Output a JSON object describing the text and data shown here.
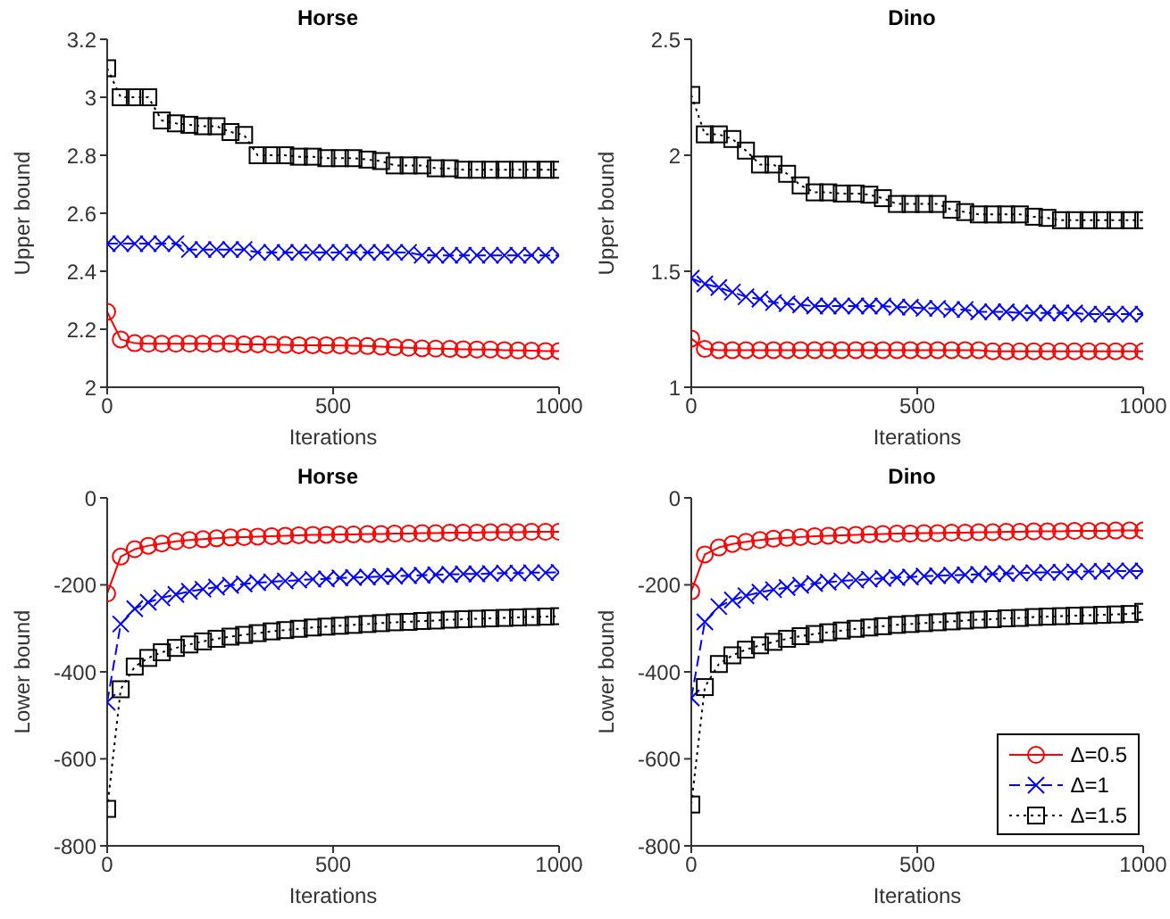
{
  "chart_data": [
    {
      "type": "line",
      "title": "Horse",
      "xlabel": "Iterations",
      "ylabel": "Upper bound",
      "xlim": [
        0,
        1000
      ],
      "xticks": [
        0,
        500,
        1000
      ],
      "ylim": [
        2,
        3.2
      ],
      "yticks": [
        2,
        2.2,
        2.4,
        2.6,
        2.8,
        3,
        3.2
      ],
      "grid": false,
      "legend": false,
      "x": [
        0,
        30,
        61,
        91,
        121,
        152,
        182,
        212,
        242,
        273,
        303,
        333,
        364,
        394,
        424,
        455,
        485,
        515,
        545,
        576,
        606,
        636,
        667,
        697,
        727,
        758,
        788,
        818,
        848,
        879,
        909,
        939,
        970,
        1000
      ],
      "series": [
        {
          "color": "#ff0000",
          "marker": "circle",
          "line_style": "solid",
          "values": [
            2.26,
            2.165,
            2.152,
            2.15,
            2.15,
            2.15,
            2.15,
            2.15,
            2.15,
            2.15,
            2.148,
            2.148,
            2.147,
            2.146,
            2.145,
            2.145,
            2.145,
            2.144,
            2.143,
            2.142,
            2.14,
            2.138,
            2.136,
            2.134,
            2.133,
            2.132,
            2.131,
            2.13,
            2.13,
            2.128,
            2.127,
            2.126,
            2.125,
            2.125
          ]
        },
        {
          "color": "#0000ff",
          "marker": "cross",
          "line_style": "dashed",
          "values": [
            2.495,
            2.495,
            2.495,
            2.495,
            2.495,
            2.495,
            2.475,
            2.475,
            2.475,
            2.475,
            2.475,
            2.465,
            2.465,
            2.465,
            2.465,
            2.465,
            2.465,
            2.465,
            2.465,
            2.465,
            2.465,
            2.465,
            2.465,
            2.455,
            2.455,
            2.455,
            2.455,
            2.455,
            2.455,
            2.455,
            2.455,
            2.455,
            2.455,
            2.455
          ]
        },
        {
          "color": "#000000",
          "marker": "square",
          "line_style": "dotted",
          "values": [
            3.1,
            3.0,
            3.0,
            3.0,
            2.92,
            2.91,
            2.905,
            2.9,
            2.9,
            2.88,
            2.87,
            2.8,
            2.8,
            2.8,
            2.795,
            2.795,
            2.79,
            2.79,
            2.79,
            2.785,
            2.78,
            2.765,
            2.765,
            2.765,
            2.755,
            2.755,
            2.75,
            2.75,
            2.75,
            2.75,
            2.75,
            2.75,
            2.75,
            2.75
          ]
        }
      ]
    },
    {
      "type": "line",
      "title": "Dino",
      "xlabel": "Iterations",
      "ylabel": "Upper bound",
      "xlim": [
        0,
        1000
      ],
      "xticks": [
        0,
        500,
        1000
      ],
      "ylim": [
        1,
        2.5
      ],
      "yticks": [
        1,
        1.5,
        2,
        2.5
      ],
      "grid": false,
      "legend": false,
      "x": [
        0,
        30,
        61,
        91,
        121,
        152,
        182,
        212,
        242,
        273,
        303,
        333,
        364,
        394,
        424,
        455,
        485,
        515,
        545,
        576,
        606,
        636,
        667,
        697,
        727,
        758,
        788,
        818,
        848,
        879,
        909,
        939,
        970,
        1000
      ],
      "series": [
        {
          "color": "#ff0000",
          "marker": "circle",
          "line_style": "solid",
          "values": [
            1.21,
            1.165,
            1.16,
            1.16,
            1.16,
            1.16,
            1.16,
            1.16,
            1.16,
            1.16,
            1.16,
            1.16,
            1.16,
            1.16,
            1.16,
            1.16,
            1.16,
            1.16,
            1.16,
            1.16,
            1.16,
            1.16,
            1.155,
            1.155,
            1.155,
            1.155,
            1.155,
            1.155,
            1.155,
            1.155,
            1.155,
            1.155,
            1.155,
            1.155
          ]
        },
        {
          "color": "#0000ff",
          "marker": "cross",
          "line_style": "dashed",
          "values": [
            1.47,
            1.445,
            1.43,
            1.41,
            1.39,
            1.38,
            1.365,
            1.36,
            1.355,
            1.35,
            1.35,
            1.35,
            1.35,
            1.35,
            1.35,
            1.345,
            1.345,
            1.34,
            1.34,
            1.335,
            1.335,
            1.325,
            1.325,
            1.325,
            1.32,
            1.32,
            1.32,
            1.32,
            1.32,
            1.315,
            1.315,
            1.315,
            1.315,
            1.315
          ]
        },
        {
          "color": "#000000",
          "marker": "square",
          "line_style": "dotted",
          "values": [
            2.26,
            2.09,
            2.09,
            2.07,
            2.02,
            1.96,
            1.96,
            1.92,
            1.87,
            1.84,
            1.84,
            1.835,
            1.835,
            1.83,
            1.815,
            1.79,
            1.79,
            1.79,
            1.79,
            1.765,
            1.755,
            1.745,
            1.745,
            1.745,
            1.745,
            1.735,
            1.73,
            1.72,
            1.72,
            1.72,
            1.72,
            1.72,
            1.72,
            1.72
          ]
        }
      ]
    },
    {
      "type": "line",
      "title": "Horse",
      "xlabel": "Iterations",
      "ylabel": "Lower bound",
      "xlim": [
        0,
        1000
      ],
      "xticks": [
        0,
        500,
        1000
      ],
      "ylim": [
        -800,
        0
      ],
      "yticks": [
        -800,
        -600,
        -400,
        -200,
        0
      ],
      "grid": false,
      "legend": false,
      "x": [
        0,
        30,
        61,
        91,
        121,
        152,
        182,
        212,
        242,
        273,
        303,
        333,
        364,
        394,
        424,
        455,
        485,
        515,
        545,
        576,
        606,
        636,
        667,
        697,
        727,
        758,
        788,
        818,
        848,
        879,
        909,
        939,
        970,
        1000
      ],
      "series": [
        {
          "color": "#ff0000",
          "marker": "circle",
          "line_style": "solid",
          "values": [
            -220,
            -135,
            -118,
            -110,
            -105,
            -100,
            -97,
            -95,
            -93,
            -91,
            -90,
            -89,
            -88,
            -87,
            -86,
            -85,
            -85,
            -84,
            -84,
            -83,
            -83,
            -82,
            -82,
            -81,
            -81,
            -80,
            -80,
            -80,
            -79,
            -79,
            -79,
            -78,
            -78,
            -78
          ]
        },
        {
          "color": "#0000ff",
          "marker": "cross",
          "line_style": "dashed",
          "values": [
            -470,
            -290,
            -255,
            -240,
            -230,
            -222,
            -215,
            -210,
            -205,
            -201,
            -198,
            -195,
            -193,
            -191,
            -189,
            -187,
            -186,
            -184,
            -183,
            -182,
            -181,
            -180,
            -179,
            -178,
            -177,
            -176,
            -175,
            -175,
            -174,
            -173,
            -173,
            -172,
            -172,
            -171
          ]
        },
        {
          "color": "#000000",
          "marker": "square",
          "line_style": "dotted",
          "values": [
            -715,
            -440,
            -388,
            -368,
            -355,
            -345,
            -337,
            -330,
            -324,
            -319,
            -315,
            -311,
            -307,
            -304,
            -301,
            -298,
            -296,
            -294,
            -292,
            -290,
            -288,
            -286,
            -285,
            -283,
            -282,
            -280,
            -279,
            -278,
            -277,
            -276,
            -275,
            -274,
            -273,
            -272
          ]
        }
      ]
    },
    {
      "type": "line",
      "title": "Dino",
      "xlabel": "Iterations",
      "ylabel": "Lower bound",
      "xlim": [
        0,
        1000
      ],
      "xticks": [
        0,
        500,
        1000
      ],
      "ylim": [
        -800,
        0
      ],
      "yticks": [
        -800,
        -600,
        -400,
        -200,
        0
      ],
      "grid": false,
      "legend": "bottom right",
      "x": [
        0,
        30,
        61,
        91,
        121,
        152,
        182,
        212,
        242,
        273,
        303,
        333,
        364,
        394,
        424,
        455,
        485,
        515,
        545,
        576,
        606,
        636,
        667,
        697,
        727,
        758,
        788,
        818,
        848,
        879,
        909,
        939,
        970,
        1000
      ],
      "series": [
        {
          "name": "Δ=0.5",
          "color": "#ff0000",
          "marker": "circle",
          "line_style": "solid",
          "values": [
            -215,
            -130,
            -114,
            -106,
            -101,
            -97,
            -94,
            -92,
            -90,
            -88,
            -87,
            -86,
            -85,
            -84,
            -83,
            -82,
            -82,
            -81,
            -81,
            -80,
            -80,
            -79,
            -79,
            -78,
            -78,
            -77,
            -77,
            -77,
            -76,
            -76,
            -76,
            -75,
            -75,
            -75
          ]
        },
        {
          "name": "Δ=1",
          "color": "#0000ff",
          "marker": "cross",
          "line_style": "dashed",
          "values": [
            -460,
            -285,
            -250,
            -235,
            -225,
            -217,
            -211,
            -206,
            -201,
            -197,
            -194,
            -191,
            -189,
            -187,
            -185,
            -183,
            -182,
            -180,
            -179,
            -178,
            -177,
            -176,
            -175,
            -174,
            -173,
            -172,
            -171,
            -171,
            -170,
            -169,
            -169,
            -168,
            -168,
            -168
          ]
        },
        {
          "name": "Δ=1.5",
          "color": "#000000",
          "marker": "square",
          "line_style": "dotted",
          "values": [
            -705,
            -435,
            -382,
            -362,
            -349,
            -339,
            -331,
            -324,
            -318,
            -313,
            -309,
            -305,
            -301,
            -298,
            -295,
            -292,
            -290,
            -288,
            -286,
            -284,
            -282,
            -280,
            -279,
            -277,
            -276,
            -274,
            -273,
            -272,
            -271,
            -270,
            -269,
            -268,
            -267,
            -262
          ]
        }
      ]
    }
  ]
}
